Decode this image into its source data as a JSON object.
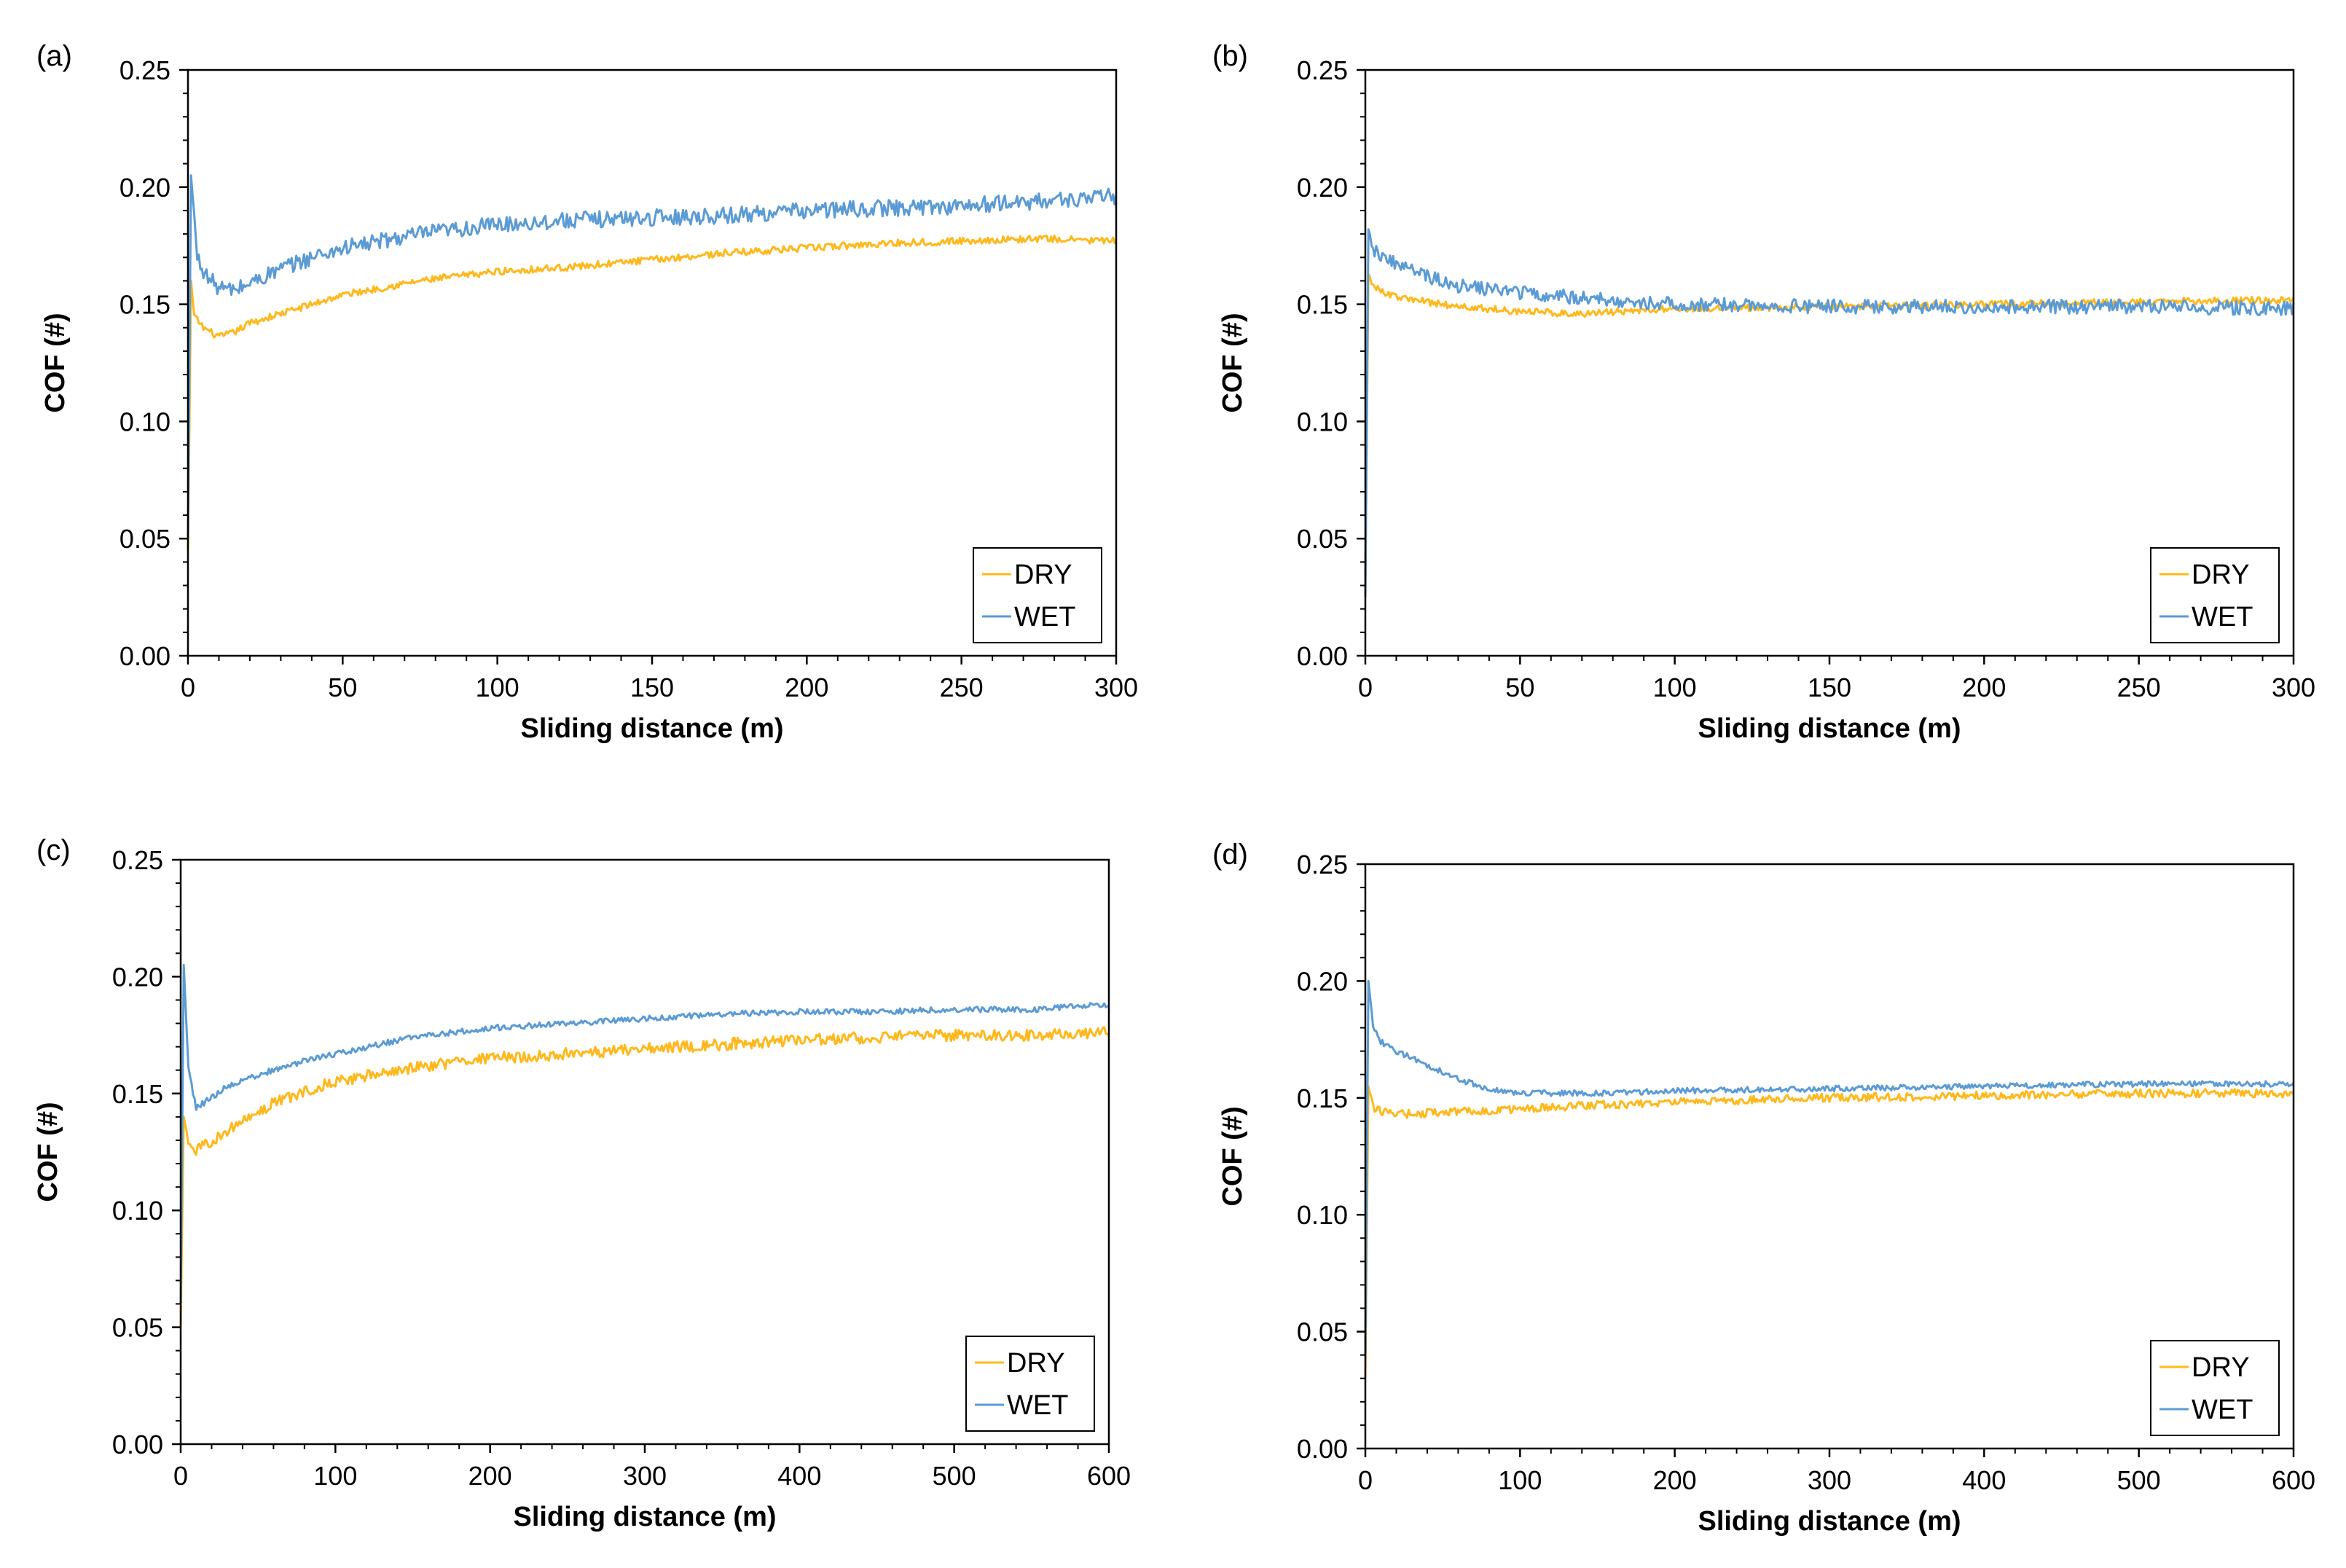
{
  "figure": {
    "colors": {
      "dry": "#FFB81C",
      "wet": "#5B9BD5",
      "axis": "#000000"
    }
  },
  "chart_data": [
    {
      "type": "line",
      "panel_label": "(a)",
      "xlabel": "Sliding distance (m)",
      "ylabel": "COF (#)",
      "xlim": [
        0,
        300
      ],
      "ylim": [
        0,
        0.25
      ],
      "x_ticks": [
        "0",
        "50",
        "100",
        "150",
        "200",
        "250",
        "300"
      ],
      "y_ticks": [
        "0.00",
        "0.05",
        "0.10",
        "0.15",
        "0.20",
        "0.25"
      ],
      "legend": [
        "DRY",
        "WET"
      ],
      "legend_position": "bottom-right",
      "series": [
        {
          "name": "DRY",
          "color": "#FFB81C",
          "noise": 0.0015,
          "points": [
            [
              0,
              0.045
            ],
            [
              1,
              0.16
            ],
            [
              2,
              0.145
            ],
            [
              5,
              0.14
            ],
            [
              10,
              0.136
            ],
            [
              15,
              0.138
            ],
            [
              20,
              0.142
            ],
            [
              30,
              0.146
            ],
            [
              40,
              0.15
            ],
            [
              50,
              0.154
            ],
            [
              75,
              0.16
            ],
            [
              100,
              0.164
            ],
            [
              125,
              0.166
            ],
            [
              150,
              0.169
            ],
            [
              175,
              0.172
            ],
            [
              200,
              0.174
            ],
            [
              225,
              0.176
            ],
            [
              250,
              0.177
            ],
            [
              275,
              0.178
            ],
            [
              300,
              0.177
            ]
          ]
        },
        {
          "name": "WET",
          "color": "#5B9BD5",
          "noise": 0.0035,
          "points": [
            [
              0,
              0.05
            ],
            [
              1,
              0.205
            ],
            [
              3,
              0.17
            ],
            [
              6,
              0.162
            ],
            [
              10,
              0.157
            ],
            [
              15,
              0.156
            ],
            [
              20,
              0.159
            ],
            [
              30,
              0.165
            ],
            [
              40,
              0.17
            ],
            [
              50,
              0.174
            ],
            [
              75,
              0.18
            ],
            [
              100,
              0.184
            ],
            [
              125,
              0.186
            ],
            [
              150,
              0.187
            ],
            [
              175,
              0.188
            ],
            [
              200,
              0.19
            ],
            [
              225,
              0.191
            ],
            [
              250,
              0.192
            ],
            [
              275,
              0.194
            ],
            [
              300,
              0.196
            ]
          ]
        }
      ]
    },
    {
      "type": "line",
      "panel_label": "(b)",
      "xlabel": "Sliding distance (m)",
      "ylabel": "COF (#)",
      "xlim": [
        0,
        300
      ],
      "ylim": [
        0,
        0.25
      ],
      "x_ticks": [
        "0",
        "50",
        "100",
        "150",
        "200",
        "250",
        "300"
      ],
      "y_ticks": [
        "0.00",
        "0.05",
        "0.10",
        "0.15",
        "0.20",
        "0.25"
      ],
      "legend": [
        "DRY",
        "WET"
      ],
      "legend_position": "bottom-right",
      "series": [
        {
          "name": "DRY",
          "color": "#FFB81C",
          "noise": 0.0015,
          "points": [
            [
              0,
              0.03
            ],
            [
              1,
              0.163
            ],
            [
              3,
              0.157
            ],
            [
              10,
              0.153
            ],
            [
              20,
              0.151
            ],
            [
              30,
              0.149
            ],
            [
              50,
              0.147
            ],
            [
              70,
              0.146
            ],
            [
              100,
              0.148
            ],
            [
              150,
              0.149
            ],
            [
              200,
              0.15
            ],
            [
              250,
              0.151
            ],
            [
              300,
              0.152
            ]
          ]
        },
        {
          "name": "WET",
          "color": "#5B9BD5",
          "noise": 0.003,
          "points": [
            [
              0,
              0.025
            ],
            [
              1,
              0.182
            ],
            [
              3,
              0.173
            ],
            [
              10,
              0.167
            ],
            [
              20,
              0.162
            ],
            [
              30,
              0.158
            ],
            [
              50,
              0.155
            ],
            [
              75,
              0.152
            ],
            [
              100,
              0.15
            ],
            [
              150,
              0.149
            ],
            [
              200,
              0.149
            ],
            [
              250,
              0.149
            ],
            [
              300,
              0.148
            ]
          ]
        }
      ]
    },
    {
      "type": "line",
      "panel_label": "(c)",
      "xlabel": "Sliding distance (m)",
      "ylabel": "COF (#)",
      "xlim": [
        0,
        600
      ],
      "ylim": [
        0,
        0.25
      ],
      "x_ticks": [
        "0",
        "100",
        "200",
        "300",
        "400",
        "500",
        "600"
      ],
      "y_ticks": [
        "0.00",
        "0.05",
        "0.10",
        "0.15",
        "0.20",
        "0.25"
      ],
      "legend": [
        "DRY",
        "WET"
      ],
      "legend_position": "bottom-right",
      "series": [
        {
          "name": "DRY",
          "color": "#FFB81C",
          "noise": 0.0025,
          "points": [
            [
              0,
              0.05
            ],
            [
              2,
              0.14
            ],
            [
              5,
              0.13
            ],
            [
              10,
              0.125
            ],
            [
              20,
              0.13
            ],
            [
              40,
              0.138
            ],
            [
              60,
              0.146
            ],
            [
              80,
              0.151
            ],
            [
              100,
              0.155
            ],
            [
              150,
              0.161
            ],
            [
              200,
              0.165
            ],
            [
              250,
              0.167
            ],
            [
              300,
              0.169
            ],
            [
              350,
              0.171
            ],
            [
              400,
              0.173
            ],
            [
              450,
              0.174
            ],
            [
              500,
              0.175
            ],
            [
              550,
              0.175
            ],
            [
              600,
              0.176
            ]
          ]
        },
        {
          "name": "WET",
          "color": "#5B9BD5",
          "noise": 0.0012,
          "points": [
            [
              0,
              0.06
            ],
            [
              2,
              0.205
            ],
            [
              5,
              0.16
            ],
            [
              10,
              0.144
            ],
            [
              15,
              0.146
            ],
            [
              30,
              0.153
            ],
            [
              50,
              0.158
            ],
            [
              75,
              0.163
            ],
            [
              100,
              0.167
            ],
            [
              150,
              0.174
            ],
            [
              200,
              0.178
            ],
            [
              250,
              0.18
            ],
            [
              300,
              0.182
            ],
            [
              350,
              0.184
            ],
            [
              400,
              0.185
            ],
            [
              450,
              0.185
            ],
            [
              500,
              0.186
            ],
            [
              550,
              0.186
            ],
            [
              600,
              0.188
            ]
          ]
        }
      ]
    },
    {
      "type": "line",
      "panel_label": "(d)",
      "xlabel": "Sliding distance (m)",
      "ylabel": "COF (#)",
      "xlim": [
        0,
        600
      ],
      "ylim": [
        0,
        0.25
      ],
      "x_ticks": [
        "0",
        "100",
        "200",
        "300",
        "400",
        "500",
        "600"
      ],
      "y_ticks": [
        "0.00",
        "0.05",
        "0.10",
        "0.15",
        "0.20",
        "0.25"
      ],
      "legend": [
        "DRY",
        "WET"
      ],
      "legend_position": "bottom-right",
      "series": [
        {
          "name": "DRY",
          "color": "#FFB81C",
          "noise": 0.0018,
          "points": [
            [
              0,
              0.03
            ],
            [
              2,
              0.155
            ],
            [
              5,
              0.146
            ],
            [
              10,
              0.144
            ],
            [
              30,
              0.143
            ],
            [
              50,
              0.144
            ],
            [
              100,
              0.145
            ],
            [
              150,
              0.147
            ],
            [
              200,
              0.148
            ],
            [
              250,
              0.149
            ],
            [
              300,
              0.15
            ],
            [
              400,
              0.151
            ],
            [
              500,
              0.152
            ],
            [
              600,
              0.152
            ]
          ]
        },
        {
          "name": "WET",
          "color": "#5B9BD5",
          "noise": 0.0012,
          "points": [
            [
              0,
              0.04
            ],
            [
              2,
              0.2
            ],
            [
              5,
              0.18
            ],
            [
              10,
              0.174
            ],
            [
              20,
              0.17
            ],
            [
              40,
              0.164
            ],
            [
              60,
              0.158
            ],
            [
              80,
              0.154
            ],
            [
              100,
              0.152
            ],
            [
              150,
              0.152
            ],
            [
              200,
              0.153
            ],
            [
              300,
              0.154
            ],
            [
              400,
              0.155
            ],
            [
              500,
              0.156
            ],
            [
              600,
              0.156
            ]
          ]
        }
      ]
    }
  ]
}
